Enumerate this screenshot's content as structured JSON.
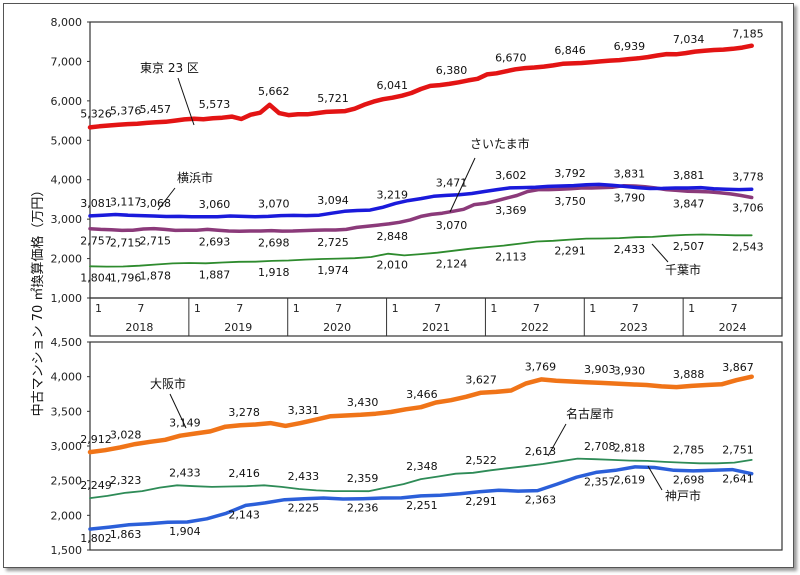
{
  "y_axis_title": "中古マンション 70 ㎡換算価格（万円）",
  "chart_data": [
    {
      "type": "line",
      "ylim": [
        1000,
        8000
      ],
      "yticks": [
        "1,000",
        "2,000",
        "3,000",
        "4,000",
        "5,000",
        "6,000",
        "7,000",
        "8,000"
      ],
      "x_period": {
        "start": "2018-01",
        "end": "2024-09"
      },
      "month_ticks": [
        "1",
        "7"
      ],
      "years": [
        "2018",
        "2019",
        "2020",
        "2021",
        "2022",
        "2023",
        "2024"
      ],
      "series": [
        {
          "name": "東京 23 区",
          "color": "#e31414",
          "width": 4.5,
          "values": [
            5326,
            5355,
            5376,
            5395,
            5410,
            5420,
            5440,
            5457,
            5470,
            5500,
            5530,
            5545,
            5535,
            5560,
            5573,
            5600,
            5540,
            5650,
            5700,
            5900,
            5690,
            5640,
            5662,
            5660,
            5690,
            5721,
            5730,
            5740,
            5800,
            5900,
            5980,
            6041,
            6080,
            6130,
            6200,
            6300,
            6380,
            6400,
            6430,
            6470,
            6520,
            6560,
            6670,
            6700,
            6750,
            6800,
            6830,
            6846,
            6870,
            6900,
            6939,
            6950,
            6960,
            6980,
            7000,
            7020,
            7034,
            7060,
            7080,
            7110,
            7150,
            7185,
            7180,
            7210,
            7250,
            7270,
            7290,
            7300,
            7320,
            7350,
            7400
          ]
        },
        {
          "name": "さいたま市",
          "color": "#8b3a7a",
          "width": 3.5,
          "values": [
            2757,
            2740,
            2730,
            2715,
            2720,
            2750,
            2760,
            2740,
            2715,
            2720,
            2720,
            2740,
            2720,
            2700,
            2693,
            2700,
            2700,
            2710,
            2698,
            2700,
            2710,
            2720,
            2725,
            2725,
            2740,
            2790,
            2820,
            2848,
            2880,
            2920,
            2980,
            3070,
            3120,
            3150,
            3200,
            3250,
            3369,
            3400,
            3460,
            3530,
            3600,
            3700,
            3750,
            3750,
            3760,
            3770,
            3790,
            3790,
            3800,
            3810,
            3847,
            3840,
            3820,
            3790,
            3750,
            3730,
            3706,
            3700,
            3690,
            3670,
            3640,
            3600,
            3550
          ]
        },
        {
          "name": "横浜市",
          "color": "#1a1adb",
          "width": 3.5,
          "values": [
            3081,
            3100,
            3117,
            3100,
            3090,
            3080,
            3068,
            3070,
            3060,
            3060,
            3060,
            3080,
            3070,
            3060,
            3070,
            3090,
            3094,
            3090,
            3100,
            3150,
            3200,
            3219,
            3230,
            3300,
            3400,
            3471,
            3520,
            3580,
            3602,
            3620,
            3650,
            3700,
            3750,
            3792,
            3800,
            3810,
            3831,
            3840,
            3850,
            3870,
            3881,
            3860,
            3830,
            3800,
            3778,
            3780,
            3790,
            3790,
            3800,
            3770,
            3760,
            3750,
            3760
          ]
        },
        {
          "name": "千葉市",
          "color": "#2e8b2e",
          "width": 1.8,
          "values": [
            1804,
            1796,
            1800,
            1820,
            1850,
            1878,
            1887,
            1880,
            1900,
            1918,
            1920,
            1940,
            1950,
            1974,
            1990,
            2000,
            2010,
            2040,
            2124,
            2080,
            2113,
            2150,
            2200,
            2250,
            2291,
            2330,
            2380,
            2433,
            2450,
            2480,
            2507,
            2510,
            2520,
            2543,
            2550,
            2580,
            2600,
            2610,
            2600,
            2590,
            2590
          ]
        }
      ],
      "data_labels": [
        {
          "series": "東京 23 区",
          "t": 0,
          "text": "5,326"
        },
        {
          "series": "東京 23 区",
          "t": 6,
          "text": "5,376"
        },
        {
          "series": "東京 23 区",
          "t": 12,
          "text": "5,457"
        },
        {
          "series": "東京 23 区",
          "t": 24,
          "text": "5,573"
        },
        {
          "series": "東京 23 区",
          "t": 36,
          "text": "5,662"
        },
        {
          "series": "東京 23 区",
          "t": 48,
          "text": "5,721"
        },
        {
          "series": "東京 23 区",
          "t": 60,
          "text": "6,041"
        },
        {
          "series": "東京 23 区",
          "t": 72,
          "text": "6,380"
        },
        {
          "series": "東京 23 区",
          "t": 84,
          "text": "6,670"
        },
        {
          "series": "東京 23 区",
          "t": 96,
          "text": "6,846"
        },
        {
          "series": "東京 23 区",
          "t": 108,
          "text": "6,939"
        },
        {
          "series": "東京 23 区",
          "t": 120,
          "text": "7,034"
        },
        {
          "series": "東京 23 区",
          "t": 132,
          "text": "7,185"
        },
        {
          "series": "横浜市",
          "t": 0,
          "text": "3,081"
        },
        {
          "series": "横浜市",
          "t": 6,
          "text": "3,117"
        },
        {
          "series": "横浜市",
          "t": 12,
          "text": "3,068"
        },
        {
          "series": "横浜市",
          "t": 24,
          "text": "3,060"
        },
        {
          "series": "横浜市",
          "t": 36,
          "text": "3,070"
        },
        {
          "series": "横浜市",
          "t": 48,
          "text": "3,094"
        },
        {
          "series": "横浜市",
          "t": 60,
          "text": "3,219"
        },
        {
          "series": "横浜市",
          "t": 72,
          "text": "3,471"
        },
        {
          "series": "横浜市",
          "t": 84,
          "text": "3,602"
        },
        {
          "series": "横浜市",
          "t": 96,
          "text": "3,792"
        },
        {
          "series": "横浜市",
          "t": 108,
          "text": "3,831"
        },
        {
          "series": "横浜市",
          "t": 120,
          "text": "3,881"
        },
        {
          "series": "横浜市",
          "t": 132,
          "text": "3,778"
        },
        {
          "series": "さいたま市",
          "t": 0,
          "text": "2,757"
        },
        {
          "series": "さいたま市",
          "t": 6,
          "text": "2,715"
        },
        {
          "series": "さいたま市",
          "t": 12,
          "text": "2,715"
        },
        {
          "series": "さいたま市",
          "t": 24,
          "text": "2,693"
        },
        {
          "series": "さいたま市",
          "t": 36,
          "text": "2,698"
        },
        {
          "series": "さいたま市",
          "t": 48,
          "text": "2,725"
        },
        {
          "series": "さいたま市",
          "t": 60,
          "text": "2,848"
        },
        {
          "series": "さいたま市",
          "t": 72,
          "text": "3,070"
        },
        {
          "series": "さいたま市",
          "t": 84,
          "text": "3,369"
        },
        {
          "series": "さいたま市",
          "t": 96,
          "text": "3,750"
        },
        {
          "series": "さいたま市",
          "t": 108,
          "text": "3,790"
        },
        {
          "series": "さいたま市",
          "t": 120,
          "text": "3,847"
        },
        {
          "series": "さいたま市",
          "t": 132,
          "text": "3,706"
        },
        {
          "series": "千葉市",
          "t": 0,
          "text": "1,804"
        },
        {
          "series": "千葉市",
          "t": 6,
          "text": "1,796"
        },
        {
          "series": "千葉市",
          "t": 12,
          "text": "1,878"
        },
        {
          "series": "千葉市",
          "t": 24,
          "text": "1,887"
        },
        {
          "series": "千葉市",
          "t": 36,
          "text": "1,918"
        },
        {
          "series": "千葉市",
          "t": 48,
          "text": "1,974"
        },
        {
          "series": "千葉市",
          "t": 60,
          "text": "2,010"
        },
        {
          "series": "千葉市",
          "t": 72,
          "text": "2,124"
        },
        {
          "series": "千葉市",
          "t": 84,
          "text": "2,113"
        },
        {
          "series": "千葉市",
          "t": 96,
          "text": "2,291"
        },
        {
          "series": "千葉市",
          "t": 108,
          "text": "2,433"
        },
        {
          "series": "千葉市",
          "t": 120,
          "text": "2,507"
        },
        {
          "series": "千葉市",
          "t": 132,
          "text": "2,543"
        }
      ]
    },
    {
      "type": "line",
      "ylim": [
        1500,
        4500
      ],
      "yticks": [
        "1,500",
        "2,000",
        "2,500",
        "3,000",
        "3,500",
        "4,000",
        "4,500"
      ],
      "x_period": {
        "start": "2018-01",
        "end": "2024-09"
      },
      "series": [
        {
          "name": "大阪市",
          "color": "#f07418",
          "width": 4.5,
          "values": [
            2912,
            2940,
            2980,
            3028,
            3060,
            3090,
            3149,
            3180,
            3210,
            3278,
            3300,
            3310,
            3331,
            3290,
            3330,
            3380,
            3430,
            3440,
            3450,
            3466,
            3490,
            3530,
            3560,
            3627,
            3660,
            3710,
            3769,
            3780,
            3800,
            3903,
            3960,
            3940,
            3930,
            3920,
            3910,
            3900,
            3888,
            3880,
            3860,
            3850,
            3867,
            3880,
            3890,
            3950,
            4000
          ]
        },
        {
          "name": "名古屋市",
          "color": "#2e8b57",
          "width": 1.8,
          "values": [
            2249,
            2280,
            2323,
            2350,
            2400,
            2433,
            2420,
            2410,
            2416,
            2420,
            2433,
            2410,
            2380,
            2359,
            2350,
            2350,
            2348,
            2400,
            2450,
            2522,
            2560,
            2600,
            2613,
            2650,
            2680,
            2708,
            2740,
            2780,
            2818,
            2810,
            2800,
            2790,
            2785,
            2770,
            2760,
            2751,
            2750,
            2760,
            2800
          ]
        },
        {
          "name": "神戸市",
          "color": "#2b5fd9",
          "width": 3.5,
          "values": [
            1802,
            1830,
            1863,
            1880,
            1900,
            1904,
            1950,
            2030,
            2143,
            2180,
            2225,
            2240,
            2250,
            2236,
            2240,
            2250,
            2251,
            2280,
            2291,
            2310,
            2340,
            2363,
            2350,
            2357,
            2450,
            2550,
            2619,
            2650,
            2698,
            2690,
            2650,
            2641,
            2650,
            2660,
            2600
          ]
        }
      ],
      "data_labels": [
        {
          "series": "大阪市",
          "t": 0,
          "text": "2,912"
        },
        {
          "series": "大阪市",
          "t": 6,
          "text": "3,028"
        },
        {
          "series": "大阪市",
          "t": 18,
          "text": "3,149"
        },
        {
          "series": "大阪市",
          "t": 30,
          "text": "3,278"
        },
        {
          "series": "大阪市",
          "t": 42,
          "text": "3,331"
        },
        {
          "series": "大阪市",
          "t": 54,
          "text": "3,430"
        },
        {
          "series": "大阪市",
          "t": 66,
          "text": "3,466"
        },
        {
          "series": "大阪市",
          "t": 78,
          "text": "3,627"
        },
        {
          "series": "大阪市",
          "t": 90,
          "text": "3,769"
        },
        {
          "series": "大阪市",
          "t": 102,
          "text": "3,903"
        },
        {
          "series": "大阪市",
          "t": 108,
          "text": "3,930"
        },
        {
          "series": "大阪市",
          "t": 120,
          "text": "3,888"
        },
        {
          "series": "大阪市",
          "t": 130,
          "text": "3,867"
        },
        {
          "series": "名古屋市",
          "t": 0,
          "text": "2,249"
        },
        {
          "series": "名古屋市",
          "t": 6,
          "text": "2,323"
        },
        {
          "series": "名古屋市",
          "t": 18,
          "text": "2,433"
        },
        {
          "series": "名古屋市",
          "t": 30,
          "text": "2,416"
        },
        {
          "series": "名古屋市",
          "t": 42,
          "text": "2,433"
        },
        {
          "series": "名古屋市",
          "t": 54,
          "text": "2,359"
        },
        {
          "series": "名古屋市",
          "t": 66,
          "text": "2,348"
        },
        {
          "series": "名古屋市",
          "t": 78,
          "text": "2,522"
        },
        {
          "series": "名古屋市",
          "t": 90,
          "text": "2,613"
        },
        {
          "series": "名古屋市",
          "t": 102,
          "text": "2,708"
        },
        {
          "series": "名古屋市",
          "t": 108,
          "text": "2,818"
        },
        {
          "series": "名古屋市",
          "t": 120,
          "text": "2,785"
        },
        {
          "series": "名古屋市",
          "t": 130,
          "text": "2,751"
        },
        {
          "series": "神戸市",
          "t": 0,
          "text": "1,802"
        },
        {
          "series": "神戸市",
          "t": 6,
          "text": "1,863"
        },
        {
          "series": "神戸市",
          "t": 18,
          "text": "1,904"
        },
        {
          "series": "神戸市",
          "t": 30,
          "text": "2,143"
        },
        {
          "series": "神戸市",
          "t": 42,
          "text": "2,225"
        },
        {
          "series": "神戸市",
          "t": 54,
          "text": "2,236"
        },
        {
          "series": "神戸市",
          "t": 66,
          "text": "2,251"
        },
        {
          "series": "神戸市",
          "t": 78,
          "text": "2,291"
        },
        {
          "series": "神戸市",
          "t": 90,
          "text": "2,363"
        },
        {
          "series": "神戸市",
          "t": 102,
          "text": "2,357"
        },
        {
          "series": "神戸市",
          "t": 108,
          "text": "2,619"
        },
        {
          "series": "神戸市",
          "t": 120,
          "text": "2,698"
        },
        {
          "series": "神戸市",
          "t": 130,
          "text": "2,641"
        }
      ]
    }
  ]
}
